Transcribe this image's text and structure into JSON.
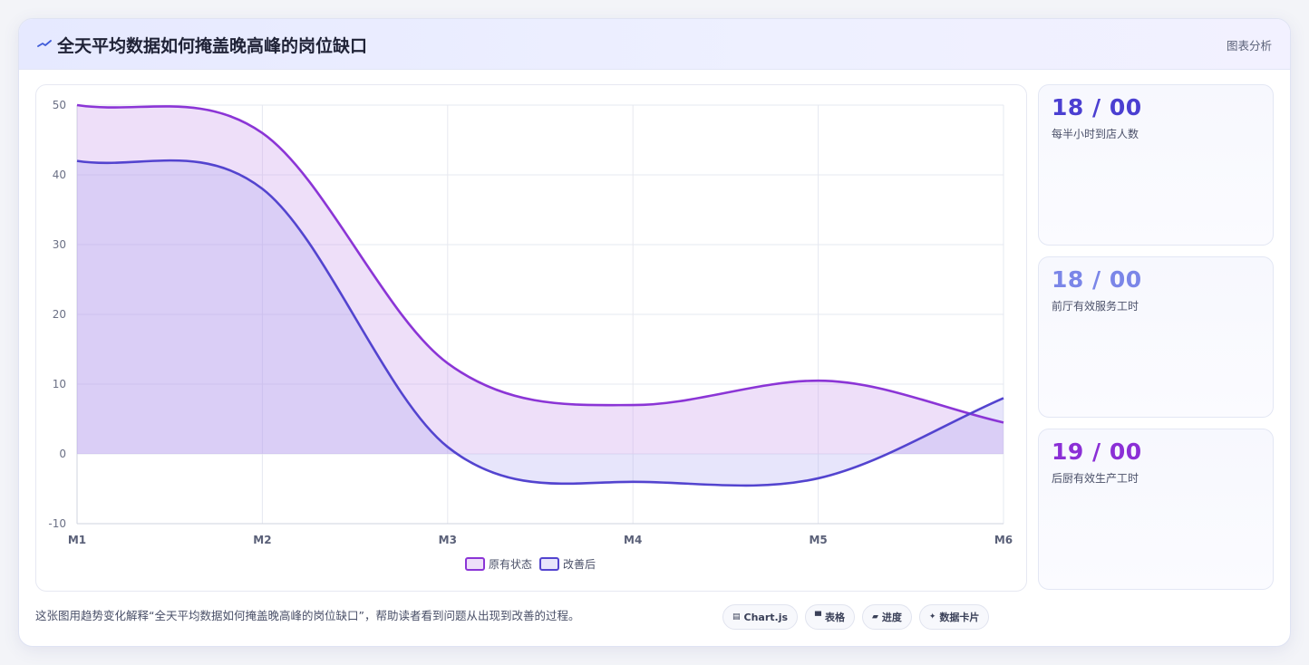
{
  "header": {
    "title": "全天平均数据如何掩盖晚高峰的岗位缺口",
    "action_label": "图表分析",
    "icon": "trend-icon"
  },
  "stats": [
    {
      "value": "18 / 00",
      "label": "每半小时到店人数",
      "color": "#4b3fd1"
    },
    {
      "value": "18 / 00",
      "label": "前厅有效服务工时",
      "color": "#7b86e8"
    },
    {
      "value": "19 / 00",
      "label": "后厨有效生产工时",
      "color": "#8b2fd6"
    }
  ],
  "footer": {
    "description": "这张图用趋势变化解释“全天平均数据如何掩盖晚高峰的岗位缺口”，帮助读者看到问题从出现到改善的过程。",
    "tags": [
      {
        "icon": "chart-icon",
        "glyph": "▤",
        "label": "Chart.js"
      },
      {
        "icon": "table-icon",
        "glyph": "▀",
        "label": "表格"
      },
      {
        "icon": "progress-icon",
        "glyph": "▰",
        "label": "进度"
      },
      {
        "icon": "sparkle-icon",
        "glyph": "✦",
        "label": "数据卡片"
      }
    ]
  },
  "chart_data": {
    "type": "area",
    "categories": [
      "M1",
      "M2",
      "M3",
      "M4",
      "M5",
      "M6"
    ],
    "ylim": [
      -10,
      50
    ],
    "yticks": [
      -10,
      0,
      10,
      20,
      30,
      40,
      50
    ],
    "grid": true,
    "legend_position": "bottom",
    "series": [
      {
        "name": "原有状态",
        "values": [
          50,
          46,
          13,
          7,
          10.5,
          4.5
        ],
        "color": "#8b35d6",
        "fill": "rgba(200, 150, 235, 0.30)"
      },
      {
        "name": "改善后",
        "values": [
          42,
          38,
          1,
          -4,
          -3.5,
          8
        ],
        "color": "#5344cf",
        "fill": "rgba(170, 160, 240, 0.28)"
      }
    ]
  }
}
